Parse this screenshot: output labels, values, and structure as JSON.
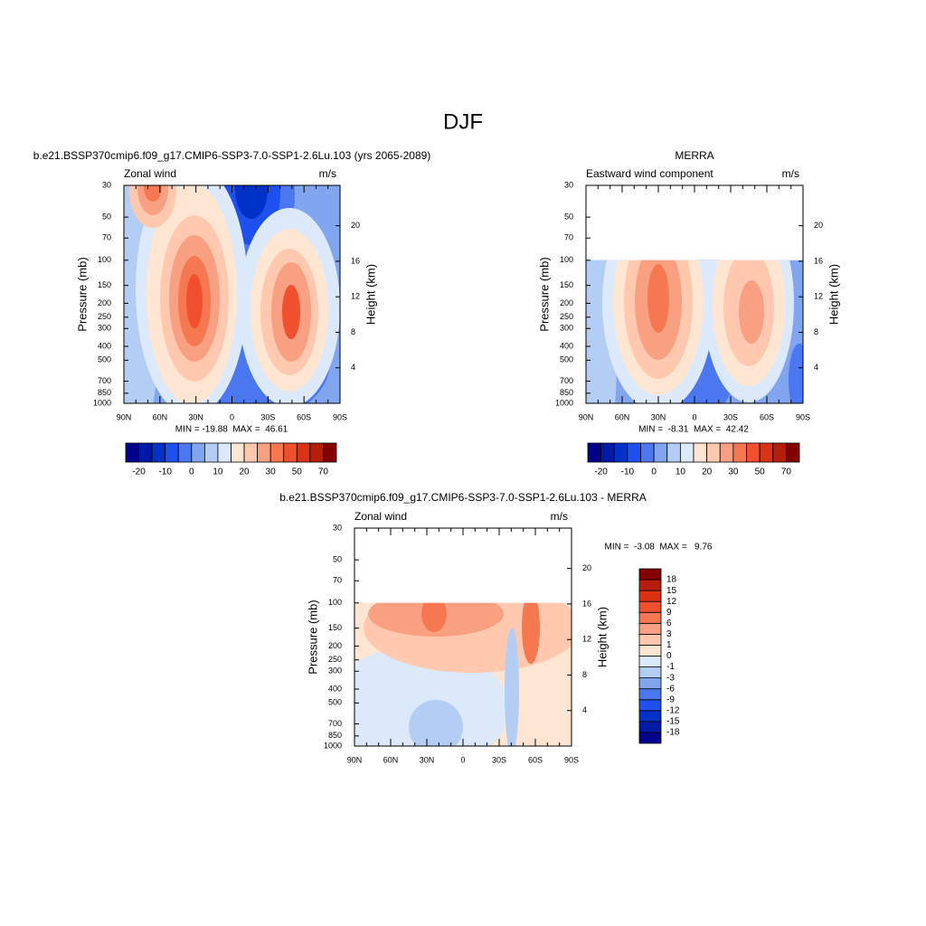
{
  "title": "DJF",
  "axes": {
    "pressure_label": "Pressure (mb)",
    "height_label": "Height (km)",
    "pressure_ticks": [
      30,
      50,
      70,
      100,
      150,
      200,
      250,
      300,
      400,
      500,
      700,
      850,
      1000
    ],
    "height_ticks": [
      20,
      16,
      12,
      8,
      4
    ],
    "lat_ticks": [
      "90N",
      "60N",
      "30N",
      "0",
      "30S",
      "60S",
      "90S"
    ]
  },
  "panels": [
    {
      "case": "b.e21.BSSP370cmip6.f09_g17.CMIP6-SSP3-7.0-SSP1-2.6Lu.103 (yrs 2065-2089)",
      "left_label": "Zonal wind",
      "right_label": "m/s",
      "stats": "MIN = -19.88  MAX =  46.61",
      "colorbar": {
        "labels": [
          "-20",
          "-10",
          "0",
          "10",
          "20",
          "30",
          "50",
          "70"
        ],
        "colors": [
          "#00008b",
          "#0019a6",
          "#0032c8",
          "#1e50f0",
          "#4b78f0",
          "#82a5f0",
          "#b4cdf5",
          "#dce9fa",
          "#ffe6d2",
          "#ffc8af",
          "#faa082",
          "#f57850",
          "#f0502d",
          "#dc3214",
          "#b41e0a",
          "#820000"
        ]
      }
    },
    {
      "case": "MERRA",
      "left_label": "Eastward wind component",
      "right_label": "m/s",
      "stats": "MIN =  -8.31  MAX =  42.42",
      "colorbar": {
        "labels": [
          "-20",
          "-10",
          "0",
          "10",
          "20",
          "30",
          "50",
          "70"
        ],
        "colors": [
          "#00008b",
          "#0019a6",
          "#0032c8",
          "#1e50f0",
          "#4b78f0",
          "#82a5f0",
          "#b4cdf5",
          "#dce9fa",
          "#ffe6d2",
          "#ffc8af",
          "#faa082",
          "#f57850",
          "#f0502d",
          "#dc3214",
          "#b41e0a",
          "#820000"
        ]
      }
    },
    {
      "case": "b.e21.BSSP370cmip6.f09_g17.CMIP6-SSP3-7.0-SSP1-2.6Lu.103 - MERRA",
      "left_label": "Zonal wind",
      "right_label": "m/s",
      "stats": "MIN =  -3.08  MAX =   9.76",
      "colorbar": {
        "labels": [
          "18",
          "15",
          "12",
          "9",
          "6",
          "3",
          "1",
          "0",
          "-1",
          "-3",
          "-6",
          "-9",
          "-12",
          "-15",
          "-18"
        ],
        "colors": [
          "#00008b",
          "#0019a6",
          "#0032c8",
          "#1e50f0",
          "#4b78f0",
          "#82a5f0",
          "#b4cdf5",
          "#dce9fa",
          "#ffe6d2",
          "#ffc8af",
          "#faa082",
          "#f57850",
          "#f0502d",
          "#dc3214",
          "#b41e0a",
          "#820000"
        ]
      }
    }
  ]
}
